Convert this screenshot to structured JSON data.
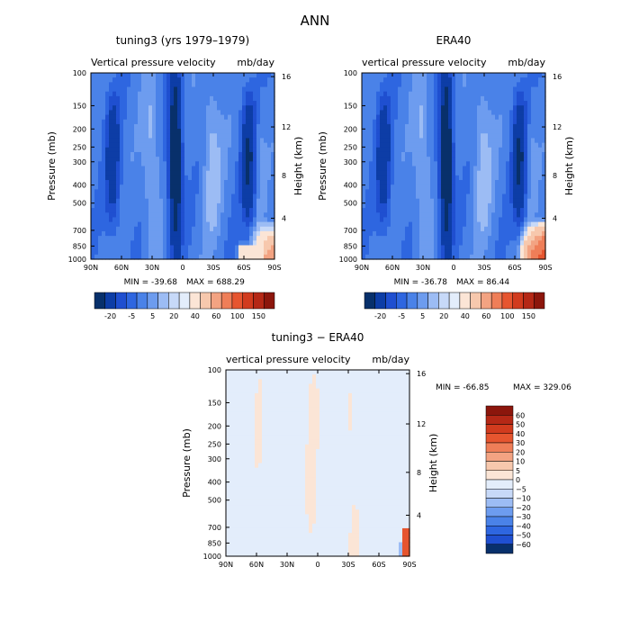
{
  "figure": {
    "title": "ANN"
  },
  "palette": {
    "neg": [
      "#08306b",
      "#0d3da6",
      "#1f4fd0",
      "#2e66e0",
      "#4a82e8",
      "#6d9cef",
      "#9cbcf4",
      "#c7d9f8",
      "#e3edfb"
    ],
    "pos": [
      "#fbe5d6",
      "#f7c8ad",
      "#f3a382",
      "#ef7e58",
      "#e6552f",
      "#d13b1e",
      "#b52816",
      "#8c160c"
    ]
  },
  "chart_data": [
    {
      "id": "model",
      "type": "heatmap",
      "title": "tuning3 (yrs 1979–1979)",
      "subtitle_left": "Vertical pressure velocity",
      "subtitle_right": "mb/day",
      "xlabel": "",
      "ylabel": "Pressure (mb)",
      "y2label": "Height (km)",
      "x_ticks": [
        "90N",
        "60N",
        "30N",
        "0",
        "30S",
        "60S",
        "90S"
      ],
      "y_ticks": [
        "100",
        "150",
        "200",
        "250",
        "300",
        "400",
        "500",
        "700",
        "850",
        "1000"
      ],
      "y2_ticks": [
        "16",
        "12",
        "8",
        "4"
      ],
      "xlim": [
        "90N",
        "90S"
      ],
      "ylim": [
        1000,
        100
      ],
      "min_label": "MIN = -39.68",
      "max_label": "MAX = 688.29",
      "min": -39.68,
      "max": 688.29,
      "colorbar": {
        "orientation": "horizontal",
        "levels": [
          "-20",
          "-5",
          "5",
          "20",
          "40",
          "60",
          "100",
          "150"
        ]
      }
    },
    {
      "id": "obs",
      "type": "heatmap",
      "title": "ERA40",
      "subtitle_left": "vertical pressure velocity",
      "subtitle_right": "mb/day",
      "xlabel": "",
      "ylabel": "Pressure (mb)",
      "y2label": "Height (km)",
      "x_ticks": [
        "90N",
        "60N",
        "30N",
        "0",
        "30S",
        "60S",
        "90S"
      ],
      "y_ticks": [
        "100",
        "150",
        "200",
        "250",
        "300",
        "400",
        "500",
        "700",
        "850",
        "1000"
      ],
      "y2_ticks": [
        "16",
        "12",
        "8",
        "4"
      ],
      "xlim": [
        "90N",
        "90S"
      ],
      "ylim": [
        1000,
        100
      ],
      "min_label": "MIN = -36.78",
      "max_label": "MAX = 86.44",
      "min": -36.78,
      "max": 86.44,
      "colorbar": {
        "orientation": "horizontal",
        "levels": [
          "-20",
          "-5",
          "5",
          "20",
          "40",
          "60",
          "100",
          "150"
        ]
      }
    },
    {
      "id": "diff",
      "type": "heatmap",
      "title": "tuning3 − ERA40",
      "subtitle_left": "vertical pressure velocity",
      "subtitle_right": "mb/day",
      "xlabel": "",
      "ylabel": "Pressure (mb)",
      "y2label": "Height (km)",
      "x_ticks": [
        "90N",
        "60N",
        "30N",
        "0",
        "30S",
        "60S",
        "90S"
      ],
      "y_ticks": [
        "100",
        "150",
        "200",
        "250",
        "300",
        "400",
        "500",
        "700",
        "850",
        "1000"
      ],
      "y2_ticks": [
        "16",
        "12",
        "8",
        "4"
      ],
      "xlim": [
        "90N",
        "90S"
      ],
      "ylim": [
        1000,
        100
      ],
      "min_label": "MIN = -66.85",
      "max_label": "MAX = 329.06",
      "min": -66.85,
      "max": 329.06,
      "colorbar": {
        "orientation": "vertical",
        "levels": [
          "60",
          "50",
          "40",
          "30",
          "20",
          "10",
          "5",
          "0",
          "−5",
          "−10",
          "−20",
          "−30",
          "−40",
          "−50",
          "−60"
        ]
      }
    }
  ]
}
